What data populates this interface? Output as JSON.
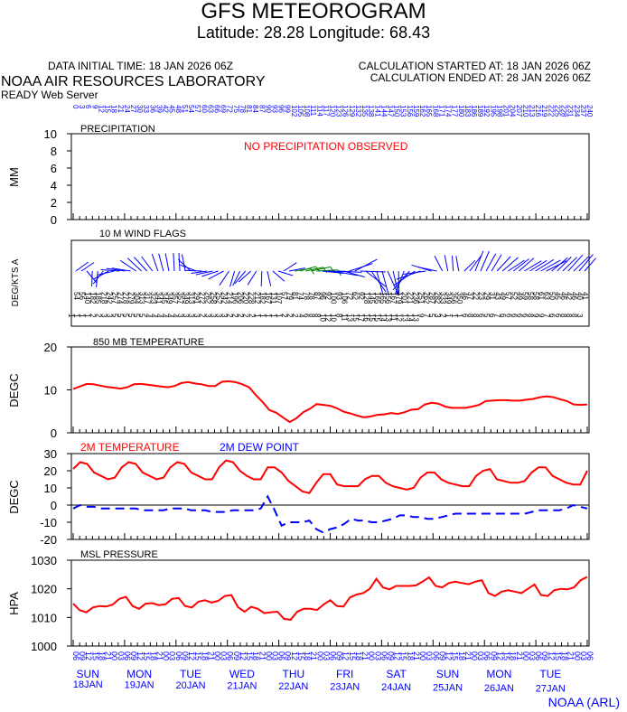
{
  "header": {
    "title": "GFS METEOROGRAM",
    "subtitle": "Latitude: 28.28 Longitude:  68.43",
    "init_time": "DATA INITIAL TIME: 18 JAN 2026 06Z",
    "calc_started": "CALCULATION STARTED AT: 18 JAN 2026 06Z",
    "calc_ended": "CALCULATION ENDED AT: 28 JAN 2026 06Z",
    "lab": "NOAA AIR RESOURCES LABORATORY",
    "server": "READY Web Server"
  },
  "footer": {
    "credit": "NOAA (ARL)"
  },
  "colors": {
    "red": "#ff0000",
    "blue": "#0000ff",
    "green": "#008000",
    "black": "#000000"
  },
  "chart_data": [
    {
      "type": "bar",
      "title": "PRECIPITATION",
      "ylabel": "MM",
      "ylim": [
        0,
        10
      ],
      "yticks": [
        0,
        2,
        4,
        6,
        8,
        10
      ],
      "annotation": "NO PRECIPITATION OBSERVED",
      "values": []
    },
    {
      "type": "wind_flags",
      "title": "10 M  WIND FLAGS",
      "ylabel": "DEG/KTS  A",
      "directions": [
        54,
        56,
        140,
        182,
        185,
        218,
        242,
        257,
        274,
        278,
        279,
        304,
        313,
        317,
        323,
        341,
        345,
        349,
        357,
        357,
        349,
        313,
        291,
        272,
        262,
        258,
        252,
        242,
        214,
        196,
        206,
        220,
        228,
        212,
        182,
        167,
        131,
        107,
        57,
        79,
        81,
        74,
        78,
        78,
        87,
        96,
        92,
        100,
        93,
        106,
        72,
        62,
        92,
        128,
        145,
        165,
        165,
        156,
        167,
        179,
        201,
        221,
        236,
        251,
        262,
        287,
        282,
        333,
        349,
        356,
        350,
        46,
        37,
        22,
        23,
        29,
        31,
        43,
        49,
        57,
        52,
        49,
        59,
        58,
        58,
        61,
        63,
        50,
        45,
        46,
        42,
        46,
        40,
        41
      ],
      "speeds": [
        1,
        1,
        1,
        1,
        2,
        2,
        3,
        3,
        5,
        5,
        5,
        5,
        5,
        5,
        4,
        4,
        4,
        4,
        4,
        4,
        3,
        3,
        3,
        3,
        2,
        3,
        3,
        3,
        3,
        2,
        2,
        2,
        2,
        2,
        1,
        1,
        1,
        1,
        1,
        2,
        2,
        2,
        4,
        6,
        8,
        8,
        10,
        12,
        10,
        8,
        11,
        13,
        15,
        17,
        16,
        15,
        15,
        14,
        13,
        11,
        12,
        13,
        14,
        13,
        9,
        7,
        5,
        3,
        2,
        1,
        1,
        1,
        6,
        8,
        8,
        6,
        5,
        6,
        7,
        6,
        6,
        6,
        6,
        6,
        8,
        9,
        9,
        7,
        6,
        6,
        8,
        8,
        8,
        3
      ],
      "highlight_range": [
        40,
        44
      ]
    },
    {
      "type": "line",
      "title": "850 MB  TEMPERATURE",
      "ylabel": "DEGC",
      "ylim": [
        0,
        20
      ],
      "yticks": [
        0,
        10,
        20
      ],
      "series": [
        {
          "color": "#ff0000",
          "values": [
            10.2,
            10.8,
            11.4,
            11.3,
            11.0,
            10.7,
            10.5,
            10.3,
            10.6,
            11.3,
            11.4,
            11.2,
            11.0,
            10.8,
            10.6,
            10.9,
            11.6,
            11.8,
            11.5,
            11.3,
            10.9,
            10.9,
            11.9,
            12.0,
            11.8,
            11.3,
            10.6,
            8.8,
            7.2,
            5.3,
            4.7,
            3.6,
            2.5,
            3.4,
            4.8,
            5.6,
            6.7,
            6.5,
            6.3,
            5.7,
            4.9,
            4.5,
            4.0,
            3.6,
            3.8,
            4.2,
            4.3,
            4.6,
            4.4,
            4.8,
            5.4,
            5.5,
            6.6,
            7.0,
            6.8,
            6.1,
            5.8,
            5.8,
            5.8,
            6.1,
            6.5,
            7.4,
            7.5,
            7.6,
            7.6,
            7.5,
            7.5,
            7.7,
            7.9,
            8.3,
            8.5,
            8.3,
            7.8,
            7.4,
            6.6,
            6.5,
            6.6
          ]
        }
      ]
    },
    {
      "type": "line",
      "ylabel": "DEGC",
      "ylim": [
        -20,
        30
      ],
      "yticks": [
        -20,
        -10,
        0,
        10,
        20,
        30
      ],
      "series": [
        {
          "name": "2M TEMPERATURE",
          "color": "#ff0000",
          "values": [
            21,
            25,
            24,
            19,
            17,
            15,
            16,
            22,
            25,
            24,
            19,
            17,
            15,
            16,
            22,
            25,
            24,
            19,
            17,
            15,
            15,
            22,
            26,
            25,
            20,
            17,
            15,
            15,
            22,
            22,
            19,
            14,
            11,
            8,
            7,
            13,
            18,
            18,
            12,
            11,
            11,
            11,
            15,
            17,
            17,
            13,
            11,
            10,
            9,
            10,
            16,
            19,
            19,
            15,
            13,
            12,
            11,
            11,
            17,
            20,
            21,
            15,
            14,
            13,
            13,
            14,
            19,
            22,
            22,
            17,
            15,
            13,
            12,
            12,
            20
          ]
        },
        {
          "name": "2M  DEW POINT",
          "color": "#0000ff",
          "values": [
            -2,
            0,
            -1,
            -1,
            -2,
            -2,
            -2,
            -2,
            -2,
            -2,
            -3,
            -3,
            -3,
            -3,
            -2,
            -2,
            -2,
            -3,
            -3,
            -3,
            -4,
            -4,
            -4,
            -3,
            -3,
            -3,
            -3,
            -2,
            5,
            -3,
            -12,
            -10,
            -10,
            -10,
            -9,
            -14,
            -16,
            -14,
            -13,
            -11,
            -8,
            -9,
            -9,
            -10,
            -10,
            -9,
            -8,
            -6,
            -6,
            -7,
            -7,
            -8,
            -8,
            -7,
            -6,
            -5,
            -5,
            -5,
            -5,
            -5,
            -5,
            -5,
            -5,
            -5,
            -5,
            -5,
            -4,
            -3,
            -3,
            -3,
            -3,
            -2,
            0,
            -1,
            -2
          ]
        }
      ]
    },
    {
      "type": "line",
      "title": "MSL PRESSURE",
      "ylabel": "HPA",
      "ylim": [
        1000,
        1030
      ],
      "yticks": [
        1000,
        1010,
        1020,
        1030
      ],
      "series": [
        {
          "color": "#ff0000",
          "values": [
            1014.8,
            1012.5,
            1011.8,
            1013.5,
            1014.0,
            1013.8,
            1014.5,
            1016.5,
            1017.2,
            1014.0,
            1013.0,
            1014.8,
            1015.0,
            1014.3,
            1014.6,
            1016.5,
            1016.8,
            1014.0,
            1013.5,
            1015.5,
            1016.0,
            1015.2,
            1015.8,
            1017.5,
            1017.8,
            1013.6,
            1012.0,
            1013.7,
            1013.0,
            1011.5,
            1011.8,
            1012.0,
            1009.5,
            1009.2,
            1012.0,
            1013.0,
            1013.0,
            1012.6,
            1014.5,
            1016.0,
            1014.0,
            1013.8,
            1017.0,
            1018.0,
            1018.5,
            1020.0,
            1023.5,
            1020.5,
            1019.8,
            1021.0,
            1021.0,
            1021.0,
            1021.2,
            1022.5,
            1024.0,
            1021.0,
            1020.5,
            1022.0,
            1022.5,
            1022.0,
            1021.6,
            1022.5,
            1023.0,
            1018.5,
            1017.5,
            1019.0,
            1019.5,
            1019.0,
            1018.5,
            1020.0,
            1021.5,
            1017.8,
            1017.5,
            1019.5,
            1020.0,
            1019.8,
            1020.5,
            1023.0,
            1024.2
          ]
        }
      ]
    }
  ],
  "time_axis": {
    "run_hours": [
      0,
      3,
      6,
      9,
      12,
      15,
      18,
      21,
      24,
      27,
      30,
      33,
      36,
      39,
      42,
      45,
      48,
      51,
      54,
      57,
      60,
      63,
      66,
      69,
      72,
      75,
      78,
      81,
      84,
      87,
      90,
      93,
      96,
      99,
      102,
      105,
      108,
      111,
      114,
      117,
      120,
      123,
      126,
      129,
      132,
      135,
      138,
      141,
      144,
      147,
      150,
      153,
      156,
      159,
      162,
      165,
      168,
      171,
      174,
      177,
      180,
      183,
      186,
      189,
      192,
      195,
      198,
      201,
      204,
      207,
      210,
      213,
      216,
      219,
      222,
      225,
      228,
      231,
      234,
      237,
      240
    ],
    "utc_hours": [
      "06",
      "09",
      "12",
      "15",
      "18",
      "21",
      "00",
      "03"
    ],
    "day_labels": [
      {
        "dow": "SUN",
        "date": "18JAN"
      },
      {
        "dow": "MON",
        "date": "19JAN"
      },
      {
        "dow": "TUE",
        "date": "20JAN"
      },
      {
        "dow": "WED",
        "date": "21JAN"
      },
      {
        "dow": "THU",
        "date": "22JAN"
      },
      {
        "dow": "FRI",
        "date": "23JAN"
      },
      {
        "dow": "SAT",
        "date": "24JAN"
      },
      {
        "dow": "SUN",
        "date": "25JAN"
      },
      {
        "dow": "MON",
        "date": "26JAN"
      },
      {
        "dow": "TUE",
        "date": "27JAN"
      }
    ]
  }
}
